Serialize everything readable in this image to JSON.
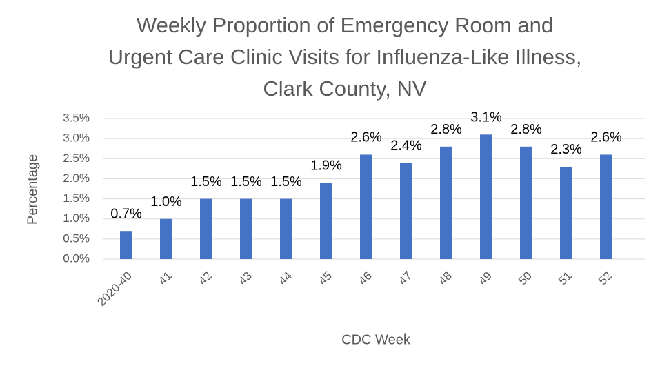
{
  "chart_data": {
    "type": "bar",
    "title": "Weekly Proportion of Emergency Room and Urgent Care Clinic Visits for Influenza-Like Illness, Clark County, NV",
    "x_label": "CDC Week",
    "y_label": "Percentage",
    "categories": [
      "2020-40",
      "41",
      "42",
      "43",
      "44",
      "45",
      "46",
      "47",
      "48",
      "49",
      "50",
      "51",
      "52"
    ],
    "values": [
      0.7,
      1.0,
      1.5,
      1.5,
      1.5,
      1.9,
      2.6,
      2.4,
      2.8,
      3.1,
      2.8,
      2.3,
      2.6
    ],
    "value_labels": [
      "0.7%",
      "1.0%",
      "1.5%",
      "1.5%",
      "1.5%",
      "1.9%",
      "2.6%",
      "2.4%",
      "2.8%",
      "3.1%",
      "2.8%",
      "2.3%",
      "2.6%"
    ],
    "color": "#4472c4",
    "ylim": [
      0,
      3.5
    ],
    "yticks": [
      {
        "value": 0,
        "label": "0.0%"
      },
      {
        "value": 0.5,
        "label": "0.5%"
      },
      {
        "value": 1,
        "label": "1.0%"
      },
      {
        "value": 1.5,
        "label": "1.5%"
      },
      {
        "value": 2,
        "label": "2.0%"
      },
      {
        "value": 2.5,
        "label": "2.5%"
      },
      {
        "value": 3,
        "label": "3.0%"
      },
      {
        "value": 3.5,
        "label": "3.5%"
      }
    ],
    "grid": true
  }
}
